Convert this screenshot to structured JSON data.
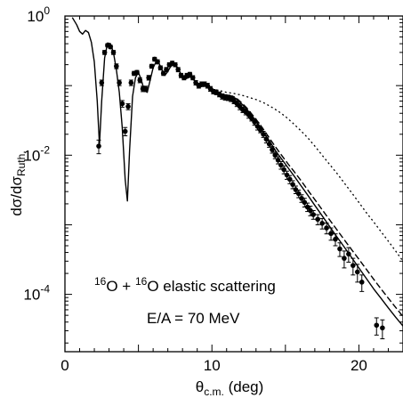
{
  "chart_data": {
    "type": "scatter",
    "xlabel": {
      "main": "θ",
      "sub": "c.m.",
      "tail": " (deg)"
    },
    "ylabel": {
      "num": "dσ/dσ",
      "num_sub": "Ruth."
    },
    "xlim": [
      0,
      23
    ],
    "ylim": [
      1.5e-05,
      1
    ],
    "yscale": "log",
    "x_ticks": [
      {
        "value": 0,
        "label": "0"
      },
      {
        "value": 10,
        "label": "10"
      },
      {
        "value": 20,
        "label": "20"
      }
    ],
    "y_ticks": [
      {
        "value": 1,
        "base": "10",
        "exp": "0"
      },
      {
        "value": 0.01,
        "base": "10",
        "exp": "-2"
      },
      {
        "value": 0.0001,
        "base": "10",
        "exp": "-4"
      }
    ],
    "annotations": {
      "reaction": {
        "sup1": "16",
        "o1": "O + ",
        "sup2": "16",
        "o2": "O elastic scattering"
      },
      "energy": "E/A = 70 MeV"
    },
    "series": [
      {
        "style": "points-with-error-bars",
        "x": [
          2.3,
          2.5,
          2.7,
          2.9,
          3.1,
          3.3,
          3.5,
          3.7,
          3.9,
          4.1,
          4.3,
          4.5,
          4.7,
          4.9,
          5.1,
          5.3,
          5.5,
          5.7,
          5.9,
          6.1,
          6.3,
          6.5,
          6.7,
          6.9,
          7.1,
          7.3,
          7.5,
          7.7,
          7.9,
          8.1,
          8.3,
          8.5,
          8.7,
          8.9,
          9.1,
          9.3,
          9.5,
          9.7,
          9.9,
          10.1,
          10.3,
          10.5,
          10.7,
          10.9,
          11.1,
          11.3,
          11.5,
          11.7,
          11.9,
          12.1,
          12.3,
          12.5,
          12.7,
          12.9,
          13.1,
          13.3,
          13.5,
          13.7,
          13.9,
          14.1,
          14.3,
          14.5,
          14.7,
          14.9,
          15.1,
          15.3,
          15.5,
          15.7,
          15.9,
          16.1,
          16.3,
          16.5,
          16.7,
          16.9,
          17.2,
          17.5,
          17.8,
          18.1,
          18.4,
          18.7,
          19.0,
          19.3,
          19.6,
          19.9,
          20.2,
          21.2,
          21.6
        ],
        "y": [
          0.0135,
          0.11,
          0.3,
          0.38,
          0.36,
          0.3,
          0.19,
          0.11,
          0.055,
          0.022,
          0.05,
          0.11,
          0.15,
          0.155,
          0.12,
          0.09,
          0.09,
          0.13,
          0.19,
          0.24,
          0.22,
          0.18,
          0.15,
          0.17,
          0.2,
          0.21,
          0.2,
          0.17,
          0.14,
          0.13,
          0.14,
          0.145,
          0.13,
          0.11,
          0.1,
          0.105,
          0.105,
          0.1,
          0.09,
          0.082,
          0.08,
          0.075,
          0.07,
          0.068,
          0.067,
          0.065,
          0.06,
          0.055,
          0.05,
          0.045,
          0.042,
          0.038,
          0.034,
          0.03,
          0.026,
          0.023,
          0.02,
          0.017,
          0.0145,
          0.012,
          0.01,
          0.0085,
          0.0072,
          0.0062,
          0.0052,
          0.0045,
          0.0038,
          0.0032,
          0.0028,
          0.0024,
          0.0021,
          0.0018,
          0.0016,
          0.0014,
          0.0012,
          0.00105,
          0.0009,
          0.00075,
          0.00062,
          0.00045,
          0.00033,
          0.00038,
          0.00026,
          0.00021,
          0.00015,
          3.6e-05,
          3.3e-05
        ],
        "yerr": [
          0.003,
          0.01,
          0.02,
          0.02,
          0.02,
          0.02,
          0.015,
          0.01,
          0.006,
          0.003,
          0.005,
          0.01,
          0.01,
          0.01,
          0.01,
          0.008,
          0.008,
          0.01,
          0.012,
          0.015,
          0.015,
          0.012,
          0.01,
          0.012,
          0.013,
          0.014,
          0.013,
          0.012,
          0.01,
          0.009,
          0.01,
          0.01,
          0.009,
          0.008,
          0.008,
          0.008,
          0.008,
          0.008,
          0.007,
          0.006,
          0.006,
          0.006,
          0.006,
          0.006,
          0.006,
          0.006,
          0.005,
          0.005,
          0.005,
          0.004,
          0.004,
          0.004,
          0.003,
          0.003,
          0.003,
          0.002,
          0.002,
          0.002,
          0.0015,
          0.0013,
          0.0011,
          0.001,
          0.0009,
          0.0008,
          0.0007,
          0.0006,
          0.0005,
          0.0004,
          0.00035,
          0.0003,
          0.0003,
          0.00025,
          0.00025,
          0.0002,
          0.0002,
          0.00018,
          0.00016,
          0.00015,
          0.00012,
          0.0001,
          9e-05,
          9e-05,
          7e-05,
          6e-05,
          4e-05,
          1e-05,
          1e-05
        ]
      },
      {
        "style": "solid",
        "x": [
          0.5,
          0.8,
          1.0,
          1.2,
          1.4,
          1.6,
          1.8,
          2.0,
          2.2,
          2.35,
          2.5,
          2.7,
          2.9,
          3.1,
          3.3,
          3.5,
          3.7,
          3.9,
          4.1,
          4.25,
          4.4,
          4.6,
          4.8,
          5.0,
          5.2,
          5.4,
          5.6,
          5.8,
          6.0,
          6.2,
          6.4,
          6.6,
          6.8,
          7.0,
          7.2,
          7.4,
          7.6,
          7.8,
          8.0,
          8.2,
          8.4,
          8.6,
          8.8,
          9.0,
          9.2,
          9.4,
          9.6,
          9.8,
          10.0,
          10.4,
          10.8,
          11.2,
          11.6,
          12.0,
          12.4,
          12.8,
          13.2,
          13.6,
          14.0,
          14.4,
          14.8,
          15.2,
          15.6,
          16.0,
          16.5,
          17.0,
          17.5,
          18.0,
          18.5,
          19.0,
          19.5,
          20.0,
          20.5,
          21.0,
          21.5,
          22.0,
          22.5,
          23.0
        ],
        "y": [
          0.95,
          0.75,
          0.6,
          0.55,
          0.62,
          0.58,
          0.42,
          0.22,
          0.06,
          0.014,
          0.06,
          0.25,
          0.41,
          0.4,
          0.3,
          0.17,
          0.08,
          0.025,
          0.0045,
          0.0022,
          0.012,
          0.07,
          0.13,
          0.155,
          0.12,
          0.085,
          0.08,
          0.12,
          0.18,
          0.22,
          0.21,
          0.17,
          0.14,
          0.16,
          0.19,
          0.2,
          0.19,
          0.16,
          0.13,
          0.125,
          0.13,
          0.135,
          0.12,
          0.1,
          0.095,
          0.1,
          0.1,
          0.095,
          0.085,
          0.078,
          0.072,
          0.07,
          0.066,
          0.055,
          0.045,
          0.035,
          0.027,
          0.02,
          0.015,
          0.011,
          0.0085,
          0.0065,
          0.005,
          0.0038,
          0.0027,
          0.0019,
          0.00135,
          0.00095,
          0.00067,
          0.00048,
          0.00034,
          0.00024,
          0.00017,
          0.00012,
          8.8e-05,
          6.4e-05,
          4.7e-05,
          3.5e-05
        ]
      },
      {
        "style": "dashed",
        "x": [
          10.0,
          10.4,
          10.8,
          11.2,
          11.6,
          12.0,
          12.4,
          12.8,
          13.2,
          13.6,
          14.0,
          14.4,
          14.8,
          15.2,
          15.6,
          16.0,
          16.5,
          17.0,
          17.5,
          18.0,
          18.5,
          19.0,
          19.5,
          20.0,
          20.5,
          21.0,
          21.5,
          22.0,
          22.5,
          23.0
        ],
        "y": [
          0.087,
          0.08,
          0.074,
          0.072,
          0.068,
          0.057,
          0.047,
          0.037,
          0.029,
          0.022,
          0.0165,
          0.0125,
          0.0096,
          0.0074,
          0.0058,
          0.0045,
          0.0032,
          0.0023,
          0.00165,
          0.00118,
          0.00085,
          0.00061,
          0.00044,
          0.00032,
          0.00023,
          0.000165,
          0.00012,
          8.8e-05,
          6.5e-05,
          4.8e-05
        ]
      },
      {
        "style": "dotted",
        "x": [
          10.0,
          10.5,
          11.0,
          11.5,
          12.0,
          12.5,
          13.0,
          13.5,
          14.0,
          14.5,
          15.0,
          15.5,
          16.0,
          16.5,
          17.0,
          17.5,
          18.0,
          18.5,
          19.0,
          19.5,
          20.0,
          20.5,
          21.0,
          21.5,
          22.0,
          22.5,
          23.0
        ],
        "y": [
          0.09,
          0.085,
          0.08,
          0.077,
          0.073,
          0.068,
          0.063,
          0.057,
          0.05,
          0.043,
          0.036,
          0.029,
          0.023,
          0.018,
          0.0135,
          0.01,
          0.0074,
          0.0055,
          0.004,
          0.0029,
          0.0021,
          0.0015,
          0.0011,
          0.0008,
          0.00058,
          0.00042,
          0.0003
        ]
      }
    ]
  }
}
